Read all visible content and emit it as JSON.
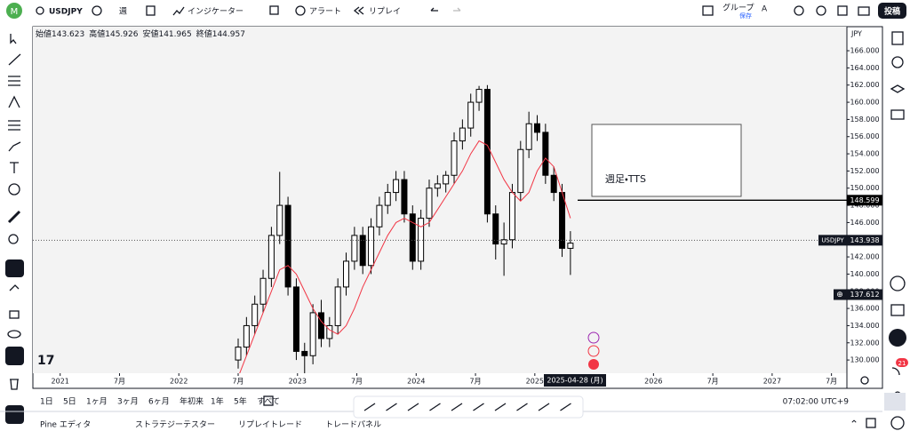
{
  "toolbar": {
    "avatar": "M",
    "symbol": "USDJPY",
    "interval": "週",
    "indicators": "インジケーター",
    "alert": "アラート",
    "replay": "リプレイ",
    "group": "グループ",
    "save": "保存",
    "layout": "A",
    "publish": "投稿"
  },
  "ohlc": [
    {
      "label": "始値",
      "value": 143.623
    },
    {
      "label": "高値",
      "value": 145.926
    },
    {
      "label": "安値",
      "value": 141.965
    },
    {
      "label": "終値",
      "value": 144.957
    }
  ],
  "chart_data": {
    "type": "candlestick",
    "currency": "JPY",
    "symbol": "USDJPY",
    "xlim": [
      2020.77,
      2027.63
    ],
    "ylim": [
      126.7,
      168.8
    ],
    "xticks": [
      {
        "value": 2021,
        "label": "2021"
      },
      {
        "value": 2021.5,
        "label": "7月"
      },
      {
        "value": 2022,
        "label": "2022"
      },
      {
        "value": 2022.5,
        "label": "7月"
      },
      {
        "value": 2023,
        "label": "2023"
      },
      {
        "value": 2023.5,
        "label": "7月"
      },
      {
        "value": 2024,
        "label": "2024"
      },
      {
        "value": 2024.5,
        "label": "7月"
      },
      {
        "value": 2025,
        "label": "2025"
      },
      {
        "value": 2026,
        "label": "2026"
      },
      {
        "value": 2026.5,
        "label": "7月"
      },
      {
        "value": 2027,
        "label": "2027"
      },
      {
        "value": 2027.5,
        "label": "7月"
      }
    ],
    "yticks": [
      {
        "value": 130,
        "label": "130.000"
      },
      {
        "value": 132,
        "label": "132.000"
      },
      {
        "value": 134,
        "label": "134.000"
      },
      {
        "value": 136,
        "label": "136.000"
      },
      {
        "value": 138,
        "label": "138.000"
      },
      {
        "value": 140,
        "label": "140.000"
      },
      {
        "value": 142,
        "label": "142.000"
      },
      {
        "value": 144,
        "label": "144.000"
      },
      {
        "value": 146,
        "label": "146.000"
      },
      {
        "value": 148,
        "label": "148.000"
      },
      {
        "value": 150,
        "label": "150.000"
      },
      {
        "value": 152,
        "label": "152.000"
      },
      {
        "value": 154,
        "label": "154.000"
      },
      {
        "value": 156,
        "label": "156.000"
      },
      {
        "value": 158,
        "label": "158.000"
      },
      {
        "value": 160,
        "label": "160.000"
      },
      {
        "value": 162,
        "label": "162.000"
      },
      {
        "value": 164,
        "label": "164.000"
      },
      {
        "value": 166,
        "label": "166.000"
      }
    ],
    "x": [
      2022.5,
      2022.57,
      2022.64,
      2022.71,
      2022.78,
      2022.85,
      2022.92,
      2022.99,
      2023.06,
      2023.13,
      2023.2,
      2023.27,
      2023.34,
      2023.41,
      2023.48,
      2023.55,
      2023.62,
      2023.69,
      2023.76,
      2023.83,
      2023.9,
      2023.97,
      2024.04,
      2024.11,
      2024.18,
      2024.25,
      2024.32,
      2024.39,
      2024.46,
      2024.53,
      2024.6,
      2024.67,
      2024.74,
      2024.81,
      2024.88,
      2024.95,
      2025.02,
      2025.09,
      2025.16,
      2025.23,
      2025.3
    ],
    "open": [
      130.0,
      131.5,
      134.0,
      136.5,
      139.5,
      144.5,
      148.0,
      138.5,
      131.0,
      130.5,
      135.5,
      132.5,
      134.0,
      138.5,
      141.5,
      144.5,
      141.0,
      145.5,
      148.0,
      149.5,
      151.0,
      147.0,
      141.5,
      146.5,
      150.0,
      150.5,
      151.5,
      155.5,
      157.0,
      160.0,
      161.5,
      147.0,
      143.5,
      144.0,
      149.5,
      154.5,
      157.5,
      156.5,
      151.5,
      149.5,
      143.0
    ],
    "high": [
      132.5,
      135.0,
      137.5,
      140.5,
      145.5,
      151.9,
      149.0,
      139.5,
      132.0,
      136.5,
      137.0,
      135.0,
      139.5,
      142.5,
      145.5,
      145.5,
      146.5,
      149.0,
      150.5,
      152.0,
      152.0,
      148.0,
      147.5,
      151.0,
      151.5,
      152.0,
      156.5,
      158.0,
      161.0,
      161.9,
      162.0,
      148.0,
      146.0,
      150.5,
      155.5,
      158.9,
      158.5,
      157.5,
      152.5,
      150.5,
      145.0
    ],
    "low": [
      129.0,
      130.5,
      133.0,
      135.5,
      138.5,
      143.5,
      137.5,
      130.0,
      127.2,
      129.5,
      131.5,
      131.5,
      133.0,
      137.5,
      140.5,
      140.0,
      140.0,
      144.5,
      147.0,
      148.5,
      146.0,
      140.5,
      140.5,
      145.5,
      149.0,
      149.5,
      150.5,
      154.5,
      156.0,
      159.0,
      146.0,
      141.7,
      139.8,
      143.0,
      148.5,
      153.5,
      155.5,
      150.5,
      148.5,
      142.0,
      139.9
    ],
    "close": [
      131.5,
      134.0,
      136.5,
      139.5,
      144.5,
      148.0,
      138.5,
      131.0,
      130.5,
      135.5,
      132.5,
      134.0,
      138.5,
      141.5,
      144.5,
      141.0,
      145.5,
      148.0,
      149.5,
      151.0,
      147.0,
      141.5,
      146.5,
      150.0,
      150.5,
      151.5,
      155.5,
      157.0,
      160.0,
      161.5,
      147.0,
      143.5,
      144.0,
      149.5,
      154.5,
      157.5,
      156.5,
      151.5,
      149.5,
      143.0,
      143.6
    ],
    "ma": [
      128.0,
      130.5,
      133.0,
      135.5,
      138.0,
      140.5,
      141.0,
      140.0,
      138.0,
      136.0,
      134.5,
      133.5,
      133.0,
      134.0,
      136.0,
      138.5,
      140.5,
      142.5,
      144.5,
      146.0,
      146.5,
      146.0,
      145.5,
      146.0,
      147.5,
      149.0,
      150.5,
      152.0,
      154.0,
      155.5,
      155.0,
      153.0,
      151.0,
      149.5,
      148.5,
      149.5,
      152.0,
      153.5,
      152.5,
      149.5,
      146.5
    ],
    "up_color": "#ffffff",
    "down_color": "#000000",
    "ma_color": "#f23645",
    "horizontal_line": 148.599,
    "last_price": 143.938,
    "alert_price": 137.612,
    "annotation": "週足・TTS",
    "crosshair_date": "2025-04-28 (月)"
  },
  "ranges": [
    "1日",
    "5日",
    "1ヶ月",
    "3ヶ月",
    "6ヶ月",
    "年初来",
    "1年",
    "5年",
    "すべて"
  ],
  "clock": "07:02:00 UTC+9",
  "panels": [
    "Pine エディタ",
    "ストラテジーテスター",
    "リプレイトレード",
    "トレードパネル"
  ],
  "notifications": "21"
}
